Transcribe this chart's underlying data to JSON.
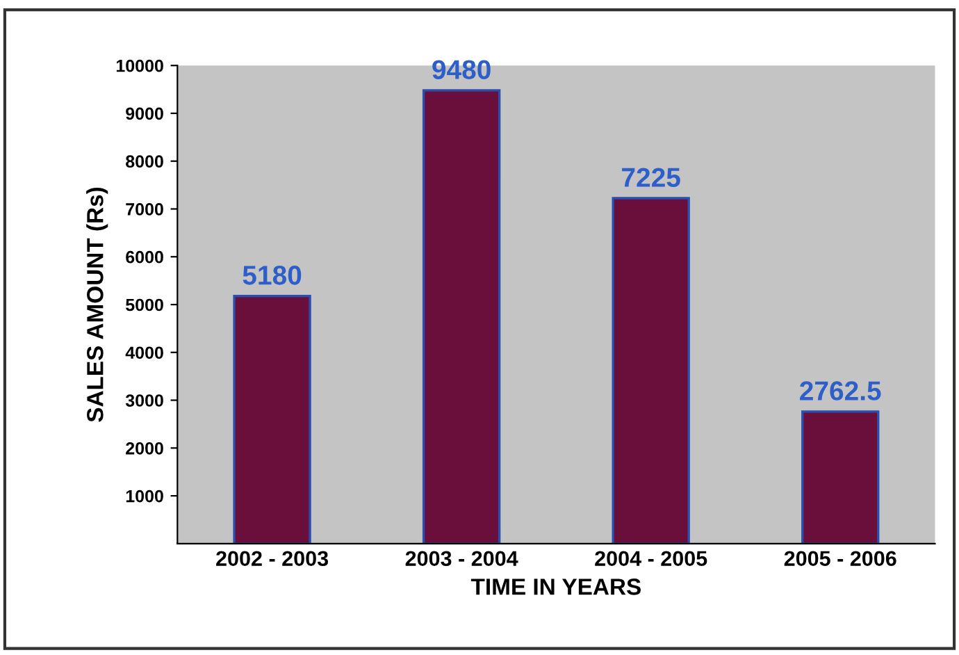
{
  "chart_data": {
    "type": "bar",
    "xlabel": "TIME IN YEARS",
    "ylabel": "SALES AMOUNT (Rs)",
    "categories": [
      "2002 - 2003",
      "2003 - 2004",
      "2004 - 2005",
      "2005 - 2006"
    ],
    "values": [
      5180,
      9480,
      7225,
      2762.5
    ],
    "color": "#6a0f3c",
    "ylim": [
      0,
      10000
    ],
    "yticks": [
      1000,
      2000,
      3000,
      4000,
      5000,
      6000,
      7000,
      8000,
      9000,
      10000
    ],
    "data_labels": true,
    "grid": false,
    "legend": false
  }
}
